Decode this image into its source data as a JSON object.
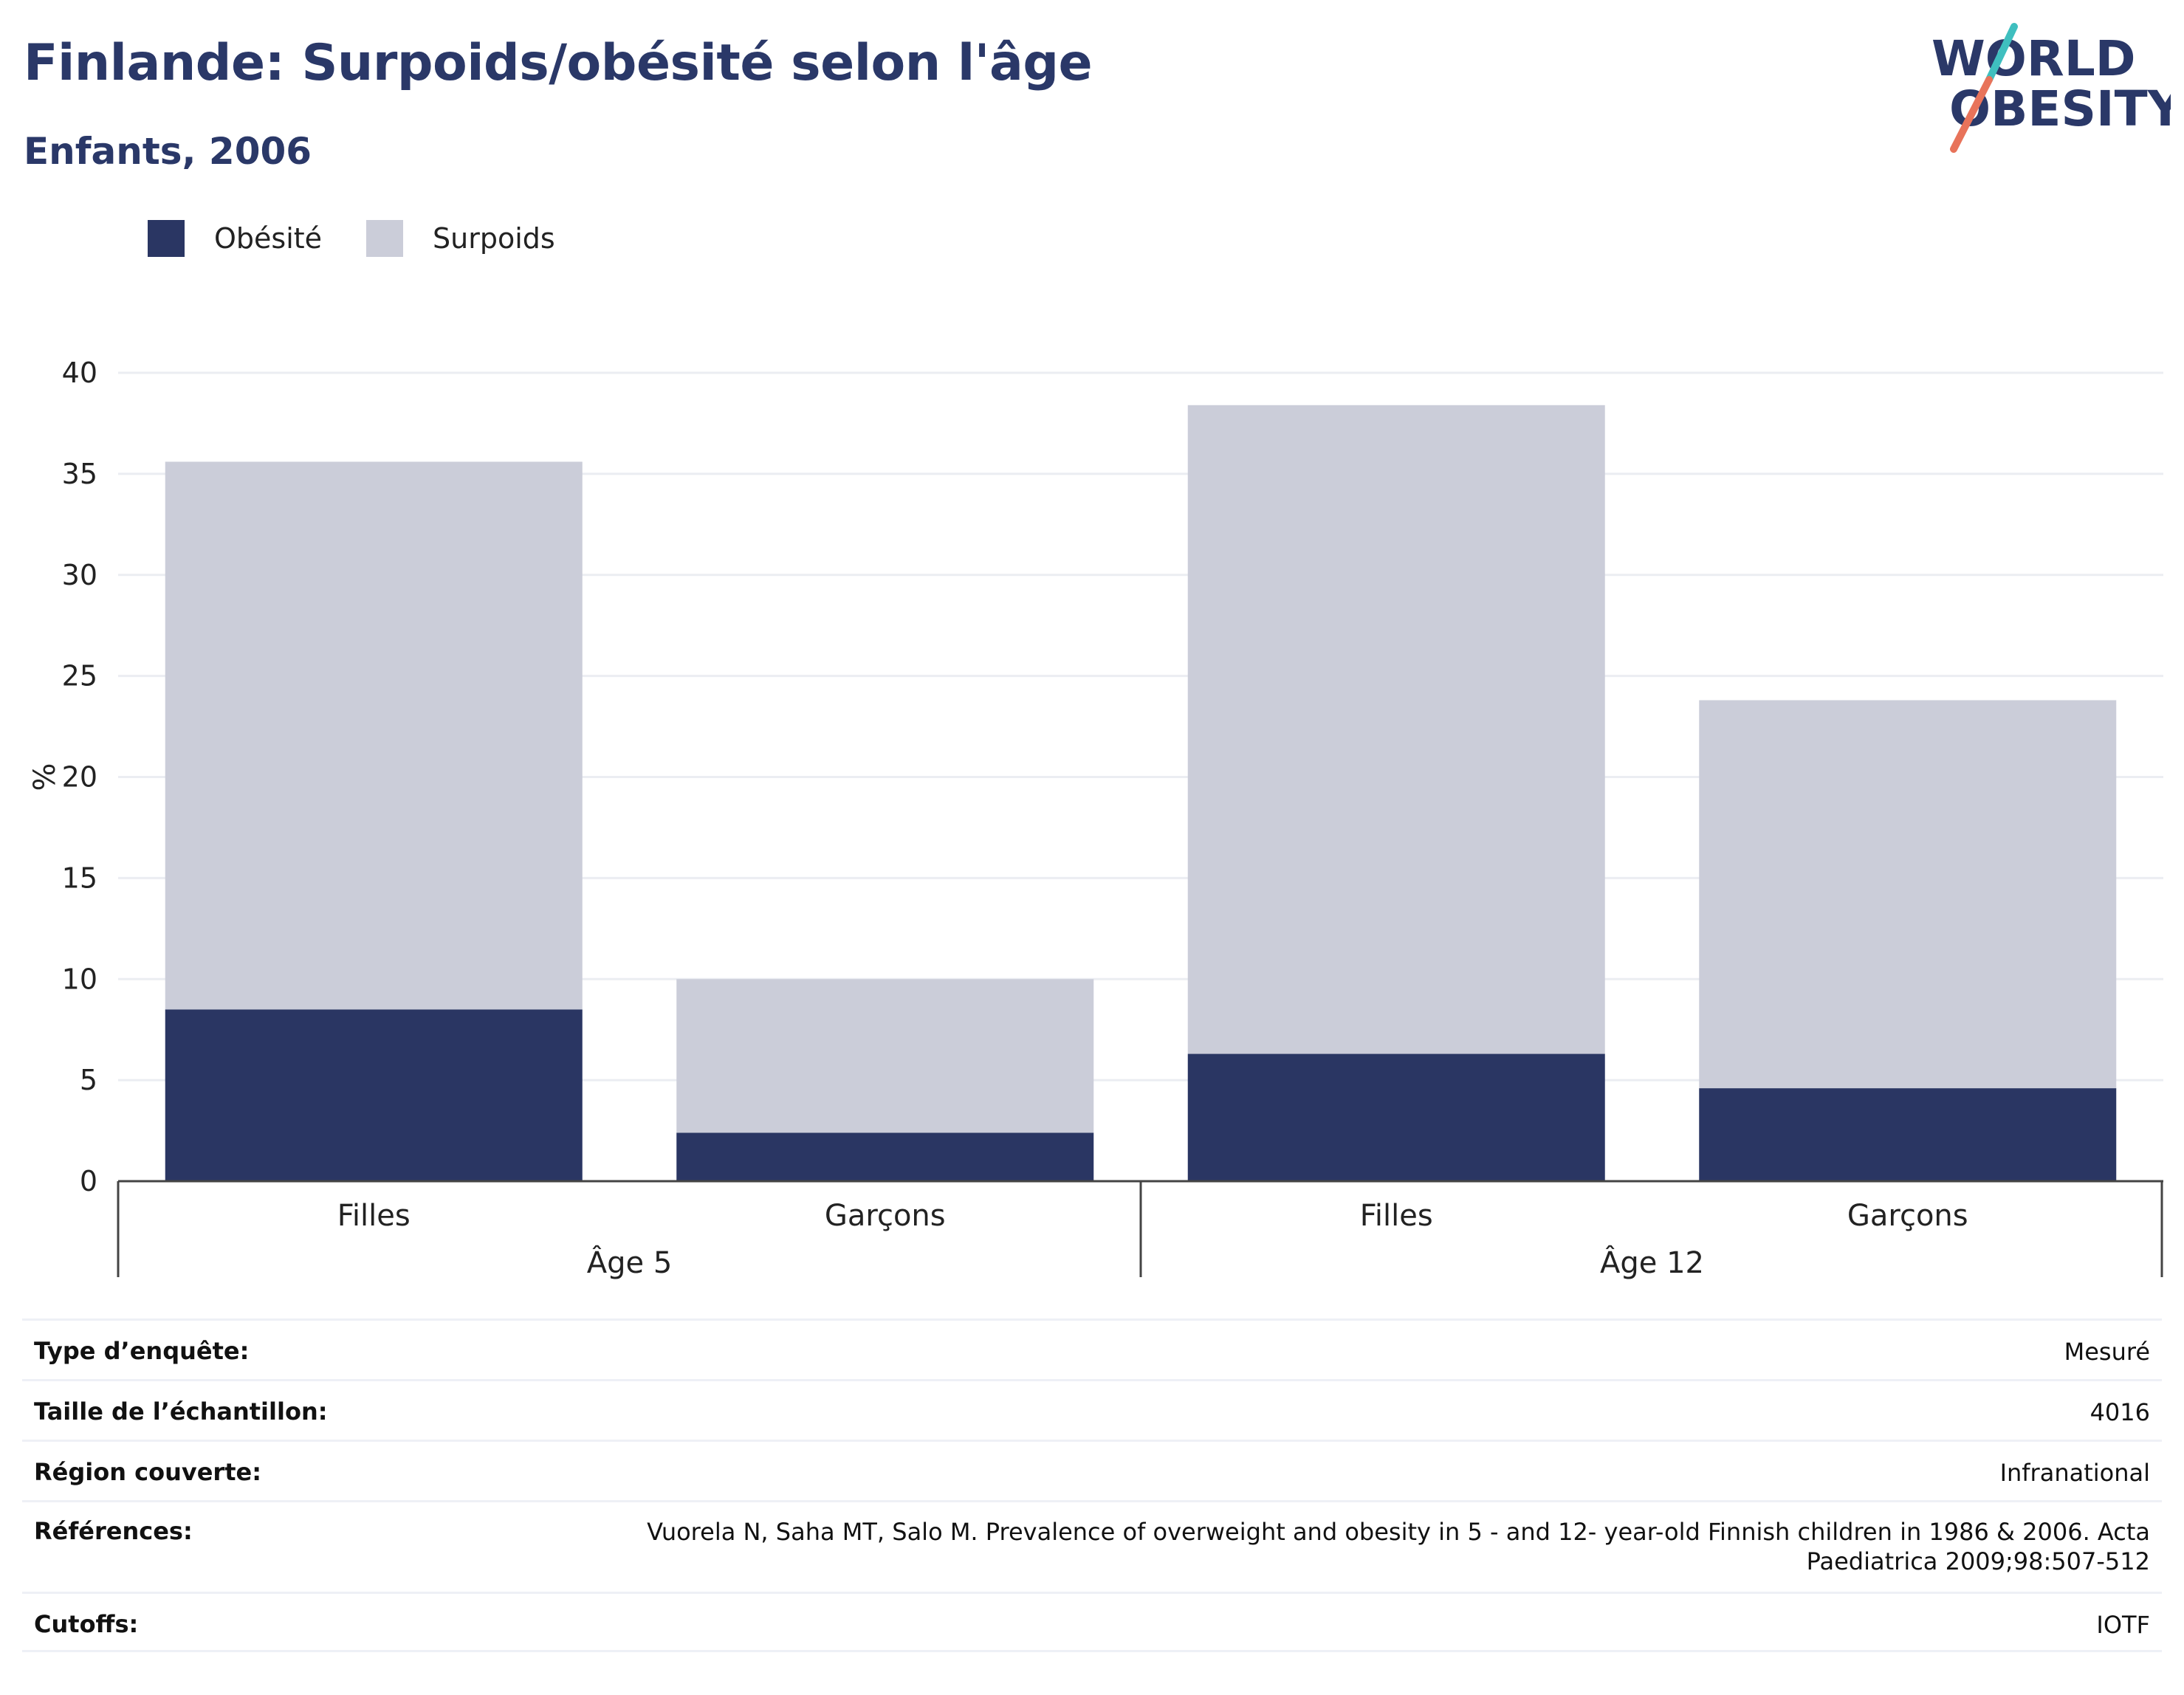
{
  "header": {
    "title": "Finlande: Surpoids/obésité selon l'âge",
    "subtitle": "Enfants, 2006"
  },
  "logo": {
    "line1": "WORLD",
    "line2": "OBESITY"
  },
  "colors": {
    "obesity": "#2a3663",
    "overweight": "#cbcdd9",
    "title": "#2a3868",
    "logo_teal": "#3fbfbf",
    "logo_coral": "#e8735a"
  },
  "chart_data": {
    "type": "bar",
    "stacked": true,
    "ylabel": "%",
    "ylim": [
      0,
      40
    ],
    "yticks": [
      0,
      5,
      10,
      15,
      20,
      25,
      30,
      35,
      40
    ],
    "grid": true,
    "legend_position": "top-left",
    "categories": [
      "Filles",
      "Garçons",
      "Filles",
      "Garçons"
    ],
    "groups": [
      {
        "label": "Âge 5",
        "categories": [
          "Filles",
          "Garçons"
        ]
      },
      {
        "label": "Âge 12",
        "categories": [
          "Filles",
          "Garçons"
        ]
      }
    ],
    "series": [
      {
        "name": "Obésité",
        "values": [
          8.5,
          2.4,
          6.3,
          4.6
        ]
      },
      {
        "name": "Surpoids",
        "values": [
          27.1,
          7.6,
          32.1,
          19.2
        ]
      }
    ]
  },
  "info": [
    {
      "label": "Type d’enquête:",
      "value": "Mesuré"
    },
    {
      "label": "Taille de l’échantillon:",
      "value": "4016"
    },
    {
      "label": "Région couverte:",
      "value": "Infranational"
    },
    {
      "label": "Références:",
      "value": "Vuorela N, Saha MT, Salo M. Prevalence of overweight and obesity in 5 - and 12- year-old Finnish children in 1986 & 2006. Acta Paediatrica 2009;98:507-512"
    },
    {
      "label": "Cutoffs:",
      "value": "IOTF"
    }
  ]
}
